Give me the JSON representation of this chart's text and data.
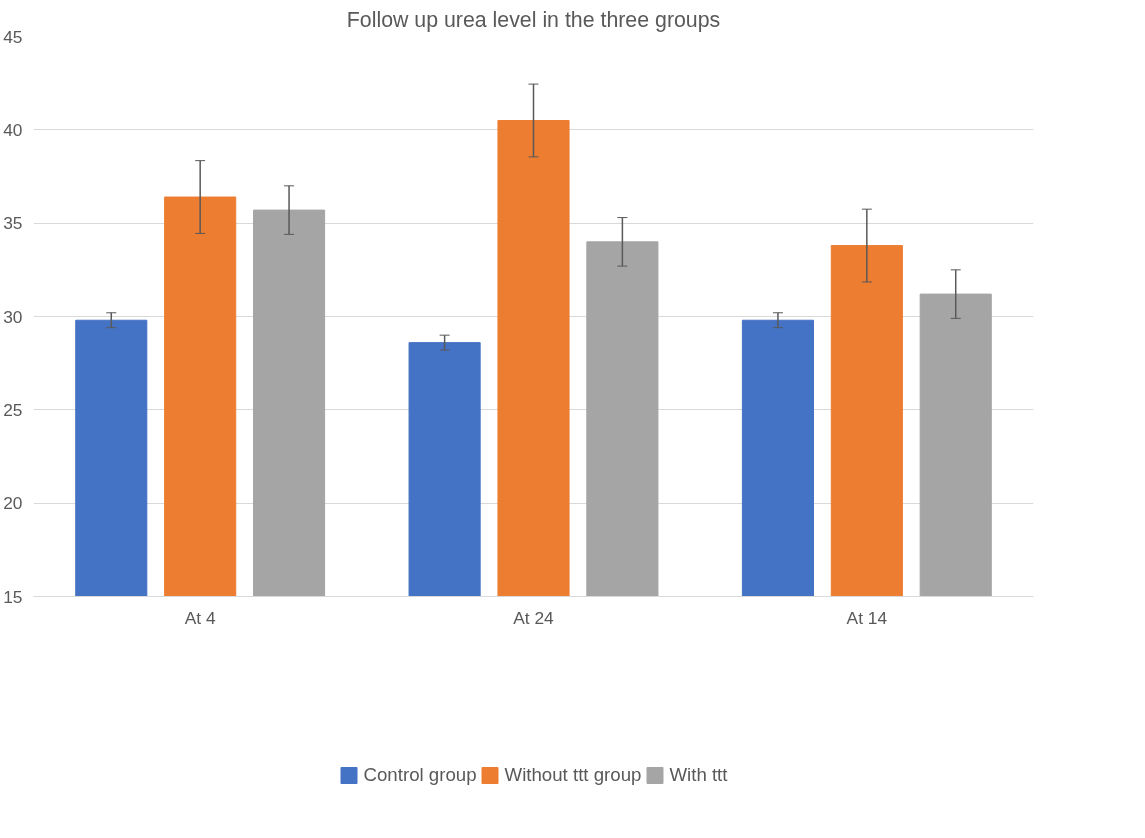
{
  "chart_data": {
    "type": "bar",
    "title": "Follow up urea level in the three groups",
    "categories": [
      "At 4",
      "At 24",
      "At 14"
    ],
    "series": [
      {
        "name": "Control group",
        "color": "#4472c4",
        "values": [
          29.8,
          28.6,
          29.8
        ],
        "errors": [
          0.4,
          0.4,
          0.4
        ]
      },
      {
        "name": "Without ttt group",
        "color": "#ed7d31",
        "values": [
          36.4,
          40.5,
          33.8
        ],
        "errors": [
          1.95,
          1.95,
          1.95
        ]
      },
      {
        "name": "With ttt",
        "color": "#a5a5a5",
        "values": [
          35.7,
          34.0,
          31.2
        ],
        "errors": [
          1.3,
          1.3,
          1.3
        ]
      }
    ],
    "ylim": [
      15,
      45
    ],
    "yticks": [
      15,
      20,
      25,
      30,
      35,
      40,
      45
    ],
    "grid": "y",
    "legend": "bottom"
  }
}
